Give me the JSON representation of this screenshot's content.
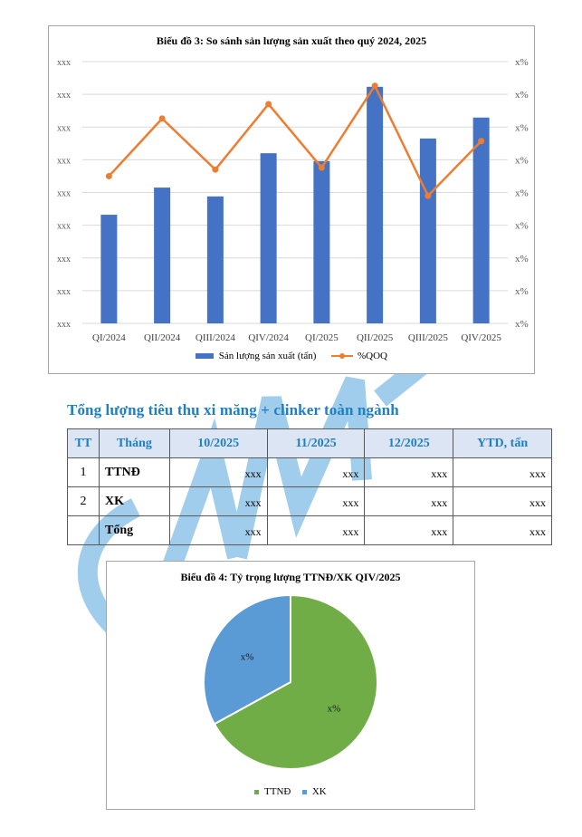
{
  "chart_data": [
    {
      "type": "bar+line",
      "title": "Biểu đồ 3: So sánh sản lượng sản xuất theo quý 2024, 2025",
      "categories": [
        "QI/2024",
        "QII/2024",
        "QIII/2024",
        "QIV/2024",
        "QI/2025",
        "QII/2025",
        "QIII/2025",
        "QIV/2025"
      ],
      "series": [
        {
          "name": "Sản lượng sản xuất (tấn)",
          "type": "bar",
          "axis": "left",
          "color": "#4472c4",
          "values": [
            3.32,
            4.15,
            3.88,
            5.2,
            4.96,
            7.23,
            5.65,
            6.29
          ]
        },
        {
          "name": "%QOQ",
          "type": "line",
          "axis": "right",
          "color": "#ed7d31",
          "values": [
            4.5,
            6.26,
            4.7,
            6.7,
            4.76,
            7.26,
            3.9,
            5.57
          ]
        }
      ],
      "y_left_ticks": [
        "xxx",
        "xxx",
        "xxx",
        "xxx",
        "xxx",
        "xxx",
        "xxx",
        "xxx",
        "xxx"
      ],
      "y_right_ticks": [
        "x%",
        "x%",
        "x%",
        "x%",
        "x%",
        "x%",
        "x%",
        "x%",
        "x%"
      ],
      "ylim": [
        0,
        8
      ],
      "grid": true,
      "legend_position": "bottom",
      "note": "Axis tick labels are masked (xxx / x%); values are relative gridline units"
    },
    {
      "type": "pie",
      "title": "Biểu đồ 4: Tỷ trọng lượng TTNĐ/XK QIV/2025",
      "labels": [
        "TTNĐ",
        "XK"
      ],
      "values": [
        67,
        33
      ],
      "data_labels": [
        "x%",
        "x%"
      ],
      "colors": [
        "#70ad47",
        "#5b9bd5"
      ],
      "legend_position": "bottom"
    }
  ],
  "chart1": {
    "title": "Biểu đồ 3: So sánh sản lượng sản xuất theo quý 2024, 2025",
    "left_tick_label": "xxx",
    "right_tick_label": "x%",
    "legend": {
      "bar": "Sản lượng sản xuất (tấn)",
      "line": "%QOQ"
    },
    "colors": {
      "bar": "#4472c4",
      "line": "#ed7d31"
    }
  },
  "section": {
    "title": "Tổng lượng tiêu thụ xi măng + clinker toàn ngành"
  },
  "table": {
    "headers": [
      "TT",
      "Tháng",
      "10/2025",
      "11/2025",
      "12/2025",
      "YTD, tấn"
    ],
    "rows": [
      {
        "tt": "1",
        "name": "TTNĐ",
        "values": [
          "xxx",
          "xxx",
          "xxx",
          "xxx"
        ]
      },
      {
        "tt": "2",
        "name": "XK",
        "values": [
          "xxx",
          "xxx",
          "xxx",
          "xxx"
        ]
      },
      {
        "tt": "",
        "name": "Tổng",
        "values": [
          "xxx",
          "xxx",
          "xxx",
          "xxx"
        ]
      }
    ]
  },
  "chart2": {
    "title": "Biểu đồ 4: Tỷ trọng lượng TTNĐ/XK QIV/2025",
    "slice_labels": {
      "ttnd": "x%",
      "xk": "x%"
    },
    "legend": {
      "ttnd": "TTNĐ",
      "xk": "XK"
    }
  },
  "watermark": {
    "text": "CAMI",
    "color": "#8fc3e8"
  }
}
